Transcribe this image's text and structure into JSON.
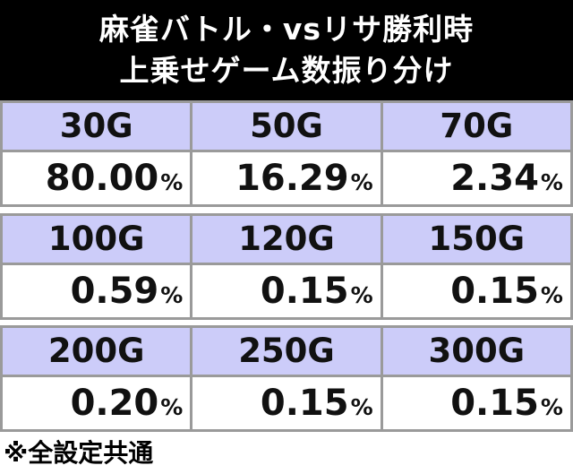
{
  "title": {
    "line1": "麻雀バトル・vsリサ勝利時",
    "line2": "上乗せゲーム数振り分け"
  },
  "percent_sign": "%",
  "groups": [
    {
      "games": [
        "30G",
        "50G",
        "70G"
      ],
      "values": [
        "80.00",
        "16.29",
        "2.34"
      ]
    },
    {
      "games": [
        "100G",
        "120G",
        "150G"
      ],
      "values": [
        "0.59",
        "0.15",
        "0.15"
      ]
    },
    {
      "games": [
        "200G",
        "250G",
        "300G"
      ],
      "values": [
        "0.20",
        "0.15",
        "0.15"
      ]
    }
  ],
  "note": "※全設定共通",
  "colors": {
    "title_bg": "#000000",
    "header_bg": "#ccccf9",
    "border": "#9a9a9a"
  }
}
